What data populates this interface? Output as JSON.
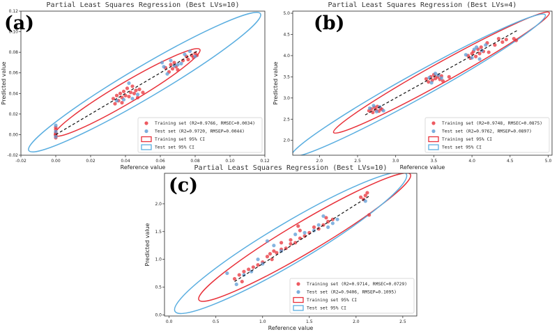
{
  "chart_data": [
    {
      "type": "scatter",
      "tag": "(a)",
      "title": "Partial Least Squares Regression (Best LVs=10)",
      "xlabel": "Reference value",
      "ylabel": "Predicted value",
      "xlim": [
        -0.02,
        0.12
      ],
      "ylim": [
        -0.02,
        0.12
      ],
      "xticks": [
        -0.02,
        0.0,
        0.02,
        0.04,
        0.06,
        0.08,
        0.1,
        0.12
      ],
      "xtick_labels": [
        "-0.02",
        "0.00",
        "0.02",
        "0.04",
        "0.06",
        "0.08",
        "0.10",
        "0.12"
      ],
      "yticks": [
        -0.02,
        0.0,
        0.02,
        0.04,
        0.06,
        0.08,
        0.1,
        0.12
      ],
      "ytick_labels": [
        "-0.02",
        "0.00",
        "0.02",
        "0.04",
        "0.06",
        "0.08",
        "0.10",
        "0.12"
      ],
      "fit_line": [
        [
          0.0,
          0.0
        ],
        [
          0.082,
          0.082
        ]
      ],
      "legend": {
        "position": "lower-right",
        "entries": [
          {
            "label": "Training set (R2=0.9766, RMSEC=0.0034)",
            "kind": "marker",
            "color": "#e8313a"
          },
          {
            "label": "Test set (R2=0.9720, RMSEP=0.0044)",
            "kind": "marker",
            "color": "#5b9bd5"
          },
          {
            "label": "Training set 95% CI",
            "kind": "patch",
            "color": "#e8313a"
          },
          {
            "label": "Test set 95% CI",
            "kind": "patch",
            "color": "#5aaee0"
          }
        ]
      },
      "ellipses": [
        {
          "name": "Training set 95% CI",
          "color": "#e8313a",
          "center": [
            0.041,
            0.041
          ],
          "angle_deg": 45,
          "major": 0.059,
          "minor": 0.0072
        },
        {
          "name": "Test set 95% CI",
          "color": "#5aaee0",
          "center": [
            0.051,
            0.051
          ],
          "angle_deg": 45,
          "major": 0.094,
          "minor": 0.011
        }
      ],
      "series": [
        {
          "name": "Training set",
          "color": "#e8313a",
          "points": [
            [
              0.0,
              0.002
            ],
            [
              0.0,
              -0.003
            ],
            [
              0.0,
              0.005
            ],
            [
              0.0,
              0.007
            ],
            [
              0.0,
              0.0
            ],
            [
              0.0,
              -0.001
            ],
            [
              0.033,
              0.035
            ],
            [
              0.034,
              0.03
            ],
            [
              0.035,
              0.038
            ],
            [
              0.036,
              0.033
            ],
            [
              0.037,
              0.04
            ],
            [
              0.038,
              0.036
            ],
            [
              0.039,
              0.042
            ],
            [
              0.04,
              0.038
            ],
            [
              0.041,
              0.045
            ],
            [
              0.042,
              0.037
            ],
            [
              0.043,
              0.041
            ],
            [
              0.044,
              0.047
            ],
            [
              0.045,
              0.04
            ],
            [
              0.046,
              0.043
            ],
            [
              0.047,
              0.036
            ],
            [
              0.048,
              0.044
            ],
            [
              0.05,
              0.041
            ],
            [
              0.038,
              0.031
            ],
            [
              0.063,
              0.065
            ],
            [
              0.065,
              0.061
            ],
            [
              0.066,
              0.068
            ],
            [
              0.067,
              0.064
            ],
            [
              0.068,
              0.07
            ],
            [
              0.069,
              0.066
            ],
            [
              0.07,
              0.063
            ],
            [
              0.073,
              0.072
            ],
            [
              0.075,
              0.076
            ],
            [
              0.076,
              0.073
            ],
            [
              0.078,
              0.077
            ],
            [
              0.079,
              0.075
            ],
            [
              0.08,
              0.079
            ],
            [
              0.081,
              0.077
            ]
          ]
        },
        {
          "name": "Test set",
          "color": "#5b9bd5",
          "points": [
            [
              0.0,
              0.009
            ],
            [
              0.0,
              0.003
            ],
            [
              0.0,
              -0.002
            ],
            [
              0.035,
              0.033
            ],
            [
              0.039,
              0.034
            ],
            [
              0.042,
              0.05
            ],
            [
              0.044,
              0.035
            ],
            [
              0.047,
              0.039
            ],
            [
              0.061,
              0.07
            ],
            [
              0.062,
              0.066
            ],
            [
              0.064,
              0.059
            ],
            [
              0.066,
              0.072
            ],
            [
              0.068,
              0.067
            ],
            [
              0.07,
              0.068
            ],
            [
              0.072,
              0.069
            ],
            [
              0.074,
              0.078
            ],
            [
              0.077,
              0.081
            ],
            [
              0.08,
              0.076
            ]
          ]
        }
      ]
    },
    {
      "type": "scatter",
      "tag": "(b)",
      "title": "Partial Least Squares Regression (Best LVs=4)",
      "xlabel": "Reference value",
      "ylabel": "Predicted value",
      "xlim": [
        1.65,
        5.05
      ],
      "ylim": [
        1.65,
        5.05
      ],
      "xticks": [
        2.0,
        2.5,
        3.0,
        3.5,
        4.0,
        4.5,
        5.0
      ],
      "xtick_labels": [
        "2.0",
        "2.5",
        "3.0",
        "3.5",
        "4.0",
        "4.5",
        "5.0"
      ],
      "yticks": [
        2.0,
        2.5,
        3.0,
        3.5,
        4.0,
        4.5,
        5.0
      ],
      "ytick_labels": [
        "2.0",
        "2.5",
        "3.0",
        "3.5",
        "4.0",
        "4.5",
        "5.0"
      ],
      "fit_line": [
        [
          2.6,
          2.6
        ],
        [
          4.6,
          4.6
        ]
      ],
      "legend": {
        "position": "lower-right",
        "entries": [
          {
            "label": "Training set (R2=0.9748, RMSEC=0.0875)",
            "kind": "marker",
            "color": "#e8313a"
          },
          {
            "label": "Test set (R2=0.9762, RMSEP=0.0897)",
            "kind": "marker",
            "color": "#5b9bd5"
          },
          {
            "label": "Training set 95% CI",
            "kind": "patch",
            "color": "#e8313a"
          },
          {
            "label": "Test set 95% CI",
            "kind": "patch",
            "color": "#5aaee0"
          }
        ]
      },
      "ellipses": [
        {
          "name": "Training set 95% CI",
          "color": "#e8313a",
          "center": [
            3.6,
            3.6
          ],
          "angle_deg": 45,
          "major": 2.0,
          "minor": 0.16
        },
        {
          "name": "Test set 95% CI",
          "color": "#5aaee0",
          "center": [
            3.3,
            3.3
          ],
          "angle_deg": 45,
          "major": 2.35,
          "minor": 0.2
        }
      ],
      "series": [
        {
          "name": "Training set",
          "color": "#e8313a",
          "points": [
            [
              2.65,
              2.7
            ],
            [
              2.68,
              2.74
            ],
            [
              2.7,
              2.66
            ],
            [
              2.72,
              2.78
            ],
            [
              2.74,
              2.72
            ],
            [
              2.76,
              2.8
            ],
            [
              2.78,
              2.69
            ],
            [
              2.8,
              2.76
            ],
            [
              2.82,
              2.73
            ],
            [
              3.4,
              3.45
            ],
            [
              3.43,
              3.38
            ],
            [
              3.46,
              3.5
            ],
            [
              3.48,
              3.42
            ],
            [
              3.5,
              3.55
            ],
            [
              3.52,
              3.46
            ],
            [
              3.55,
              3.5
            ],
            [
              3.58,
              3.44
            ],
            [
              3.6,
              3.52
            ],
            [
              3.62,
              3.4
            ],
            [
              3.7,
              3.5
            ],
            [
              3.95,
              4.0
            ],
            [
              3.98,
              3.94
            ],
            [
              4.0,
              4.05
            ],
            [
              4.02,
              4.1
            ],
            [
              4.05,
              3.98
            ],
            [
              4.08,
              4.15
            ],
            [
              4.1,
              4.05
            ],
            [
              4.12,
              4.2
            ],
            [
              4.15,
              4.1
            ],
            [
              4.2,
              4.3
            ],
            [
              4.3,
              4.25
            ],
            [
              4.35,
              4.4
            ],
            [
              4.4,
              4.32
            ],
            [
              4.45,
              4.38
            ],
            [
              4.55,
              4.4
            ],
            [
              4.58,
              4.36
            ],
            [
              4.22,
              4.08
            ]
          ]
        },
        {
          "name": "Test set",
          "color": "#5b9bd5",
          "points": [
            [
              2.66,
              2.76
            ],
            [
              2.71,
              2.82
            ],
            [
              2.75,
              2.68
            ],
            [
              2.79,
              2.79
            ],
            [
              2.84,
              2.7
            ],
            [
              3.44,
              3.48
            ],
            [
              3.47,
              3.36
            ],
            [
              3.52,
              3.58
            ],
            [
              3.56,
              3.54
            ],
            [
              3.6,
              3.47
            ],
            [
              4.0,
              3.95
            ],
            [
              4.03,
              4.15
            ],
            [
              4.06,
              4.2
            ],
            [
              4.1,
              3.92
            ],
            [
              4.13,
              4.12
            ],
            [
              4.18,
              4.25
            ],
            [
              3.92,
              4.02
            ]
          ]
        }
      ]
    },
    {
      "type": "scatter",
      "tag": "(c)",
      "title": "Partial Least Squares Regression (Best LVs=10)",
      "xlabel": "Reference value",
      "ylabel": "Predicted value",
      "xlim": [
        -0.05,
        2.65
      ],
      "ylim": [
        -0.02,
        2.55
      ],
      "xticks": [
        0.0,
        0.5,
        1.0,
        1.5,
        2.0,
        2.5
      ],
      "xtick_labels": [
        "0.0",
        "0.5",
        "1.0",
        "1.5",
        "2.0",
        "2.5"
      ],
      "yticks": [
        0.0,
        0.5,
        1.0,
        1.5,
        2.0
      ],
      "ytick_labels": [
        "0.0",
        "0.5",
        "1.0",
        "1.5",
        "2.0"
      ],
      "fit_line": [
        [
          0.7,
          0.6
        ],
        [
          2.15,
          2.15
        ]
      ],
      "legend": {
        "position": "lower-right",
        "entries": [
          {
            "label": "Training set (R2=0.9714, RMSEC=0.0729)",
            "kind": "marker",
            "color": "#e8313a"
          },
          {
            "label": "Test set (R2=0.9406, RMSEP=0.1095)",
            "kind": "marker",
            "color": "#5b9bd5"
          },
          {
            "label": "Training set 95% CI",
            "kind": "patch",
            "color": "#e8313a"
          },
          {
            "label": "Test set 95% CI",
            "kind": "patch",
            "color": "#5aaee0"
          }
        ]
      },
      "ellipses": [
        {
          "name": "Training set 95% CI",
          "color": "#e8313a",
          "center": [
            1.45,
            1.4
          ],
          "angle_deg": 45,
          "major": 1.6,
          "minor": 0.2
        },
        {
          "name": "Test set 95% CI",
          "color": "#5aaee0",
          "center": [
            1.3,
            1.3
          ],
          "angle_deg": 45,
          "major": 1.75,
          "minor": 0.26
        }
      ],
      "series": [
        {
          "name": "Training set",
          "color": "#e8313a",
          "points": [
            [
              0.7,
              0.65
            ],
            [
              0.75,
              0.72
            ],
            [
              0.8,
              0.78
            ],
            [
              0.85,
              0.82
            ],
            [
              0.9,
              0.86
            ],
            [
              0.95,
              0.9
            ],
            [
              1.0,
              0.95
            ],
            [
              1.05,
              1.05
            ],
            [
              1.1,
              1.0
            ],
            [
              1.12,
              1.15
            ],
            [
              1.15,
              1.12
            ],
            [
              1.2,
              1.18
            ],
            [
              1.25,
              1.2
            ],
            [
              1.3,
              1.28
            ],
            [
              1.35,
              1.3
            ],
            [
              1.4,
              1.38
            ],
            [
              1.45,
              1.42
            ],
            [
              1.5,
              1.48
            ],
            [
              1.55,
              1.58
            ],
            [
              1.6,
              1.55
            ],
            [
              1.65,
              1.62
            ],
            [
              1.7,
              1.68
            ],
            [
              1.75,
              1.72
            ],
            [
              2.05,
              2.12
            ],
            [
              2.08,
              2.08
            ],
            [
              2.1,
              2.15
            ],
            [
              2.12,
              2.2
            ],
            [
              2.14,
              1.8
            ],
            [
              1.68,
              1.75
            ],
            [
              1.4,
              1.52
            ],
            [
              1.38,
              1.6
            ],
            [
              1.3,
              1.35
            ],
            [
              1.2,
              1.3
            ],
            [
              0.78,
              0.6
            ],
            [
              1.08,
              1.1
            ]
          ]
        },
        {
          "name": "Test set",
          "color": "#5b9bd5",
          "points": [
            [
              0.62,
              0.75
            ],
            [
              0.72,
              0.55
            ],
            [
              0.8,
              0.72
            ],
            [
              0.88,
              0.78
            ],
            [
              0.95,
              1.0
            ],
            [
              1.0,
              0.92
            ],
            [
              1.05,
              1.33
            ],
            [
              1.12,
              1.25
            ],
            [
              1.2,
              1.15
            ],
            [
              1.35,
              1.45
            ],
            [
              1.45,
              1.48
            ],
            [
              1.55,
              1.52
            ],
            [
              1.6,
              1.62
            ],
            [
              1.65,
              1.78
            ],
            [
              1.7,
              1.58
            ],
            [
              1.75,
              1.65
            ],
            [
              1.8,
              1.72
            ],
            [
              2.1,
              2.05
            ]
          ]
        }
      ]
    }
  ]
}
